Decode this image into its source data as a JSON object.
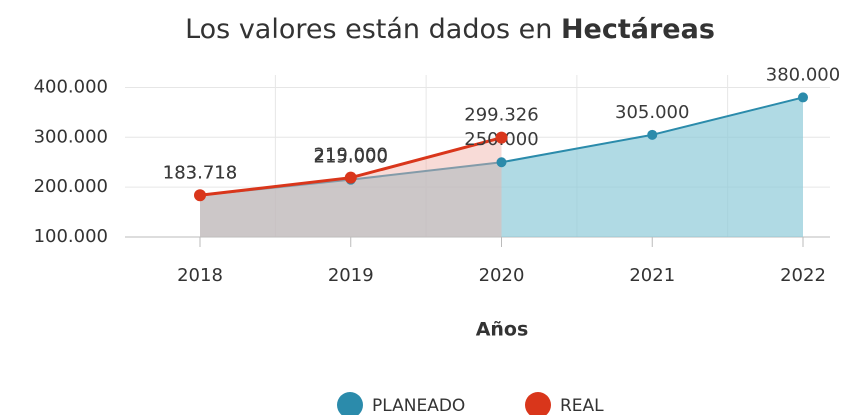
{
  "chart_data": {
    "type": "area",
    "title": "Los valores están dados en",
    "title_emphasis": "Hectáreas",
    "x_label": "Años",
    "categories": [
      "2018",
      "2019",
      "2020",
      "2021",
      "2022"
    ],
    "series": [
      {
        "name": "PLANEADO",
        "color": "#2b8bab",
        "area_color": "#8fcad9",
        "values": [
          183718,
          215000,
          250000,
          305000,
          380000
        ],
        "value_labels": [
          "183.718",
          "215.000",
          "250.000",
          "305.000",
          "380.000"
        ]
      },
      {
        "name": "REAL",
        "color": "#d9361b",
        "area_color": "#f0b0a6",
        "values": [
          183718,
          219000,
          299326,
          null,
          null
        ],
        "value_labels": [
          "183.718",
          "219.000",
          "299.326",
          null,
          null
        ]
      }
    ],
    "ylim": [
      100000,
      425000
    ],
    "yticks": [
      {
        "value": 100000,
        "label": "100.000"
      },
      {
        "value": 200000,
        "label": "200.000"
      },
      {
        "value": 300000,
        "label": "300.000"
      },
      {
        "value": 400000,
        "label": "400.000"
      }
    ],
    "grid": true,
    "legend": "bottom"
  }
}
